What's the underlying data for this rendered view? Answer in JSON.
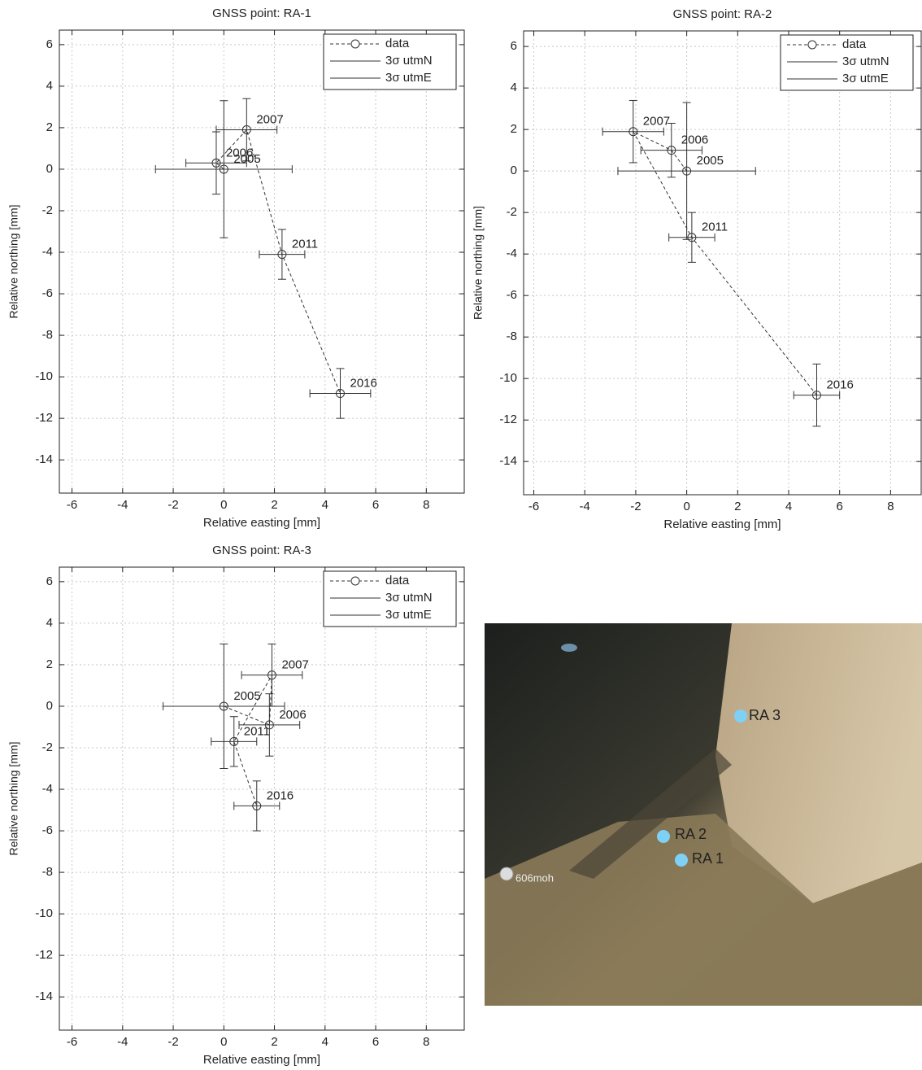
{
  "chart_data": [
    {
      "type": "scatter",
      "title": "GNSS point: RA-1",
      "xlabel": "Relative easting [mm]",
      "ylabel": "Relative northing [mm]",
      "xlim": [
        -6.5,
        9.5
      ],
      "ylim": [
        -15.6,
        6.7
      ],
      "xticks": [
        -6,
        -4,
        -2,
        0,
        2,
        4,
        6,
        8
      ],
      "yticks": [
        -14,
        -12,
        -10,
        -8,
        -6,
        -4,
        -2,
        0,
        2,
        4,
        6
      ],
      "grid": true,
      "legend": "upper right",
      "color": "#333333",
      "series": [
        {
          "name": "data",
          "labels": [
            "2005",
            "2006",
            "2007",
            "2011",
            "2016"
          ],
          "x": [
            0,
            -0.3,
            0.9,
            2.3,
            4.6
          ],
          "values": [
            0,
            0.3,
            1.9,
            -4.1,
            -10.8
          ]
        }
      ],
      "error_bars": [
        {
          "name": "3σ utmN",
          "values": [
            3.3,
            1.5,
            1.5,
            1.2,
            1.2
          ]
        },
        {
          "name": "3σ utmE",
          "values": [
            2.7,
            1.2,
            1.2,
            0.9,
            1.2
          ]
        }
      ]
    },
    {
      "type": "scatter",
      "title": "GNSS point: RA-2",
      "xlabel": "Relative easting [mm]",
      "ylabel": "Relative northing [mm]",
      "xlim": [
        -6.4,
        9.2
      ],
      "ylim": [
        -15.6,
        6.75
      ],
      "xticks": [
        -6,
        -4,
        -2,
        0,
        2,
        4,
        6,
        8
      ],
      "yticks": [
        -14,
        -12,
        -10,
        -8,
        -6,
        -4,
        -2,
        0,
        2,
        4,
        6
      ],
      "grid": true,
      "legend": "upper right",
      "color": "#333333",
      "series": [
        {
          "name": "data",
          "labels": [
            "2005",
            "2006",
            "2007",
            "2011",
            "2016"
          ],
          "x": [
            0,
            -0.6,
            -2.1,
            0.2,
            5.1
          ],
          "values": [
            0,
            1.0,
            1.9,
            -3.2,
            -10.8
          ]
        }
      ],
      "error_bars": [
        {
          "name": "3σ utmN",
          "values": [
            3.3,
            1.3,
            1.5,
            1.2,
            1.5
          ]
        },
        {
          "name": "3σ utmE",
          "values": [
            2.7,
            1.2,
            1.2,
            0.9,
            0.9
          ]
        }
      ]
    },
    {
      "type": "scatter",
      "title": "GNSS point: RA-3",
      "xlabel": "Relative easting [mm]",
      "ylabel": "Relative northing [mm]",
      "xlim": [
        -6.5,
        9.5
      ],
      "ylim": [
        -15.6,
        6.7
      ],
      "xticks": [
        -6,
        -4,
        -2,
        0,
        2,
        4,
        6,
        8
      ],
      "yticks": [
        -14,
        -12,
        -10,
        -8,
        -6,
        -4,
        -2,
        0,
        2,
        4,
        6
      ],
      "grid": true,
      "legend": "upper right",
      "color": "#333333",
      "series": [
        {
          "name": "data",
          "labels": [
            "2005",
            "2006",
            "2007",
            "2011",
            "2016"
          ],
          "x": [
            0,
            1.8,
            1.9,
            0.4,
            1.3
          ],
          "values": [
            0,
            -0.9,
            1.5,
            -1.7,
            -4.8
          ]
        }
      ],
      "error_bars": [
        {
          "name": "3σ utmN",
          "values": [
            3.0,
            1.5,
            1.5,
            1.2,
            1.2
          ]
        },
        {
          "name": "3σ utmE",
          "values": [
            2.4,
            1.2,
            1.2,
            0.9,
            0.9
          ]
        }
      ]
    }
  ],
  "map": {
    "points": [
      "RA 3",
      "RA 2",
      "RA 1"
    ],
    "summit": "606moh"
  }
}
